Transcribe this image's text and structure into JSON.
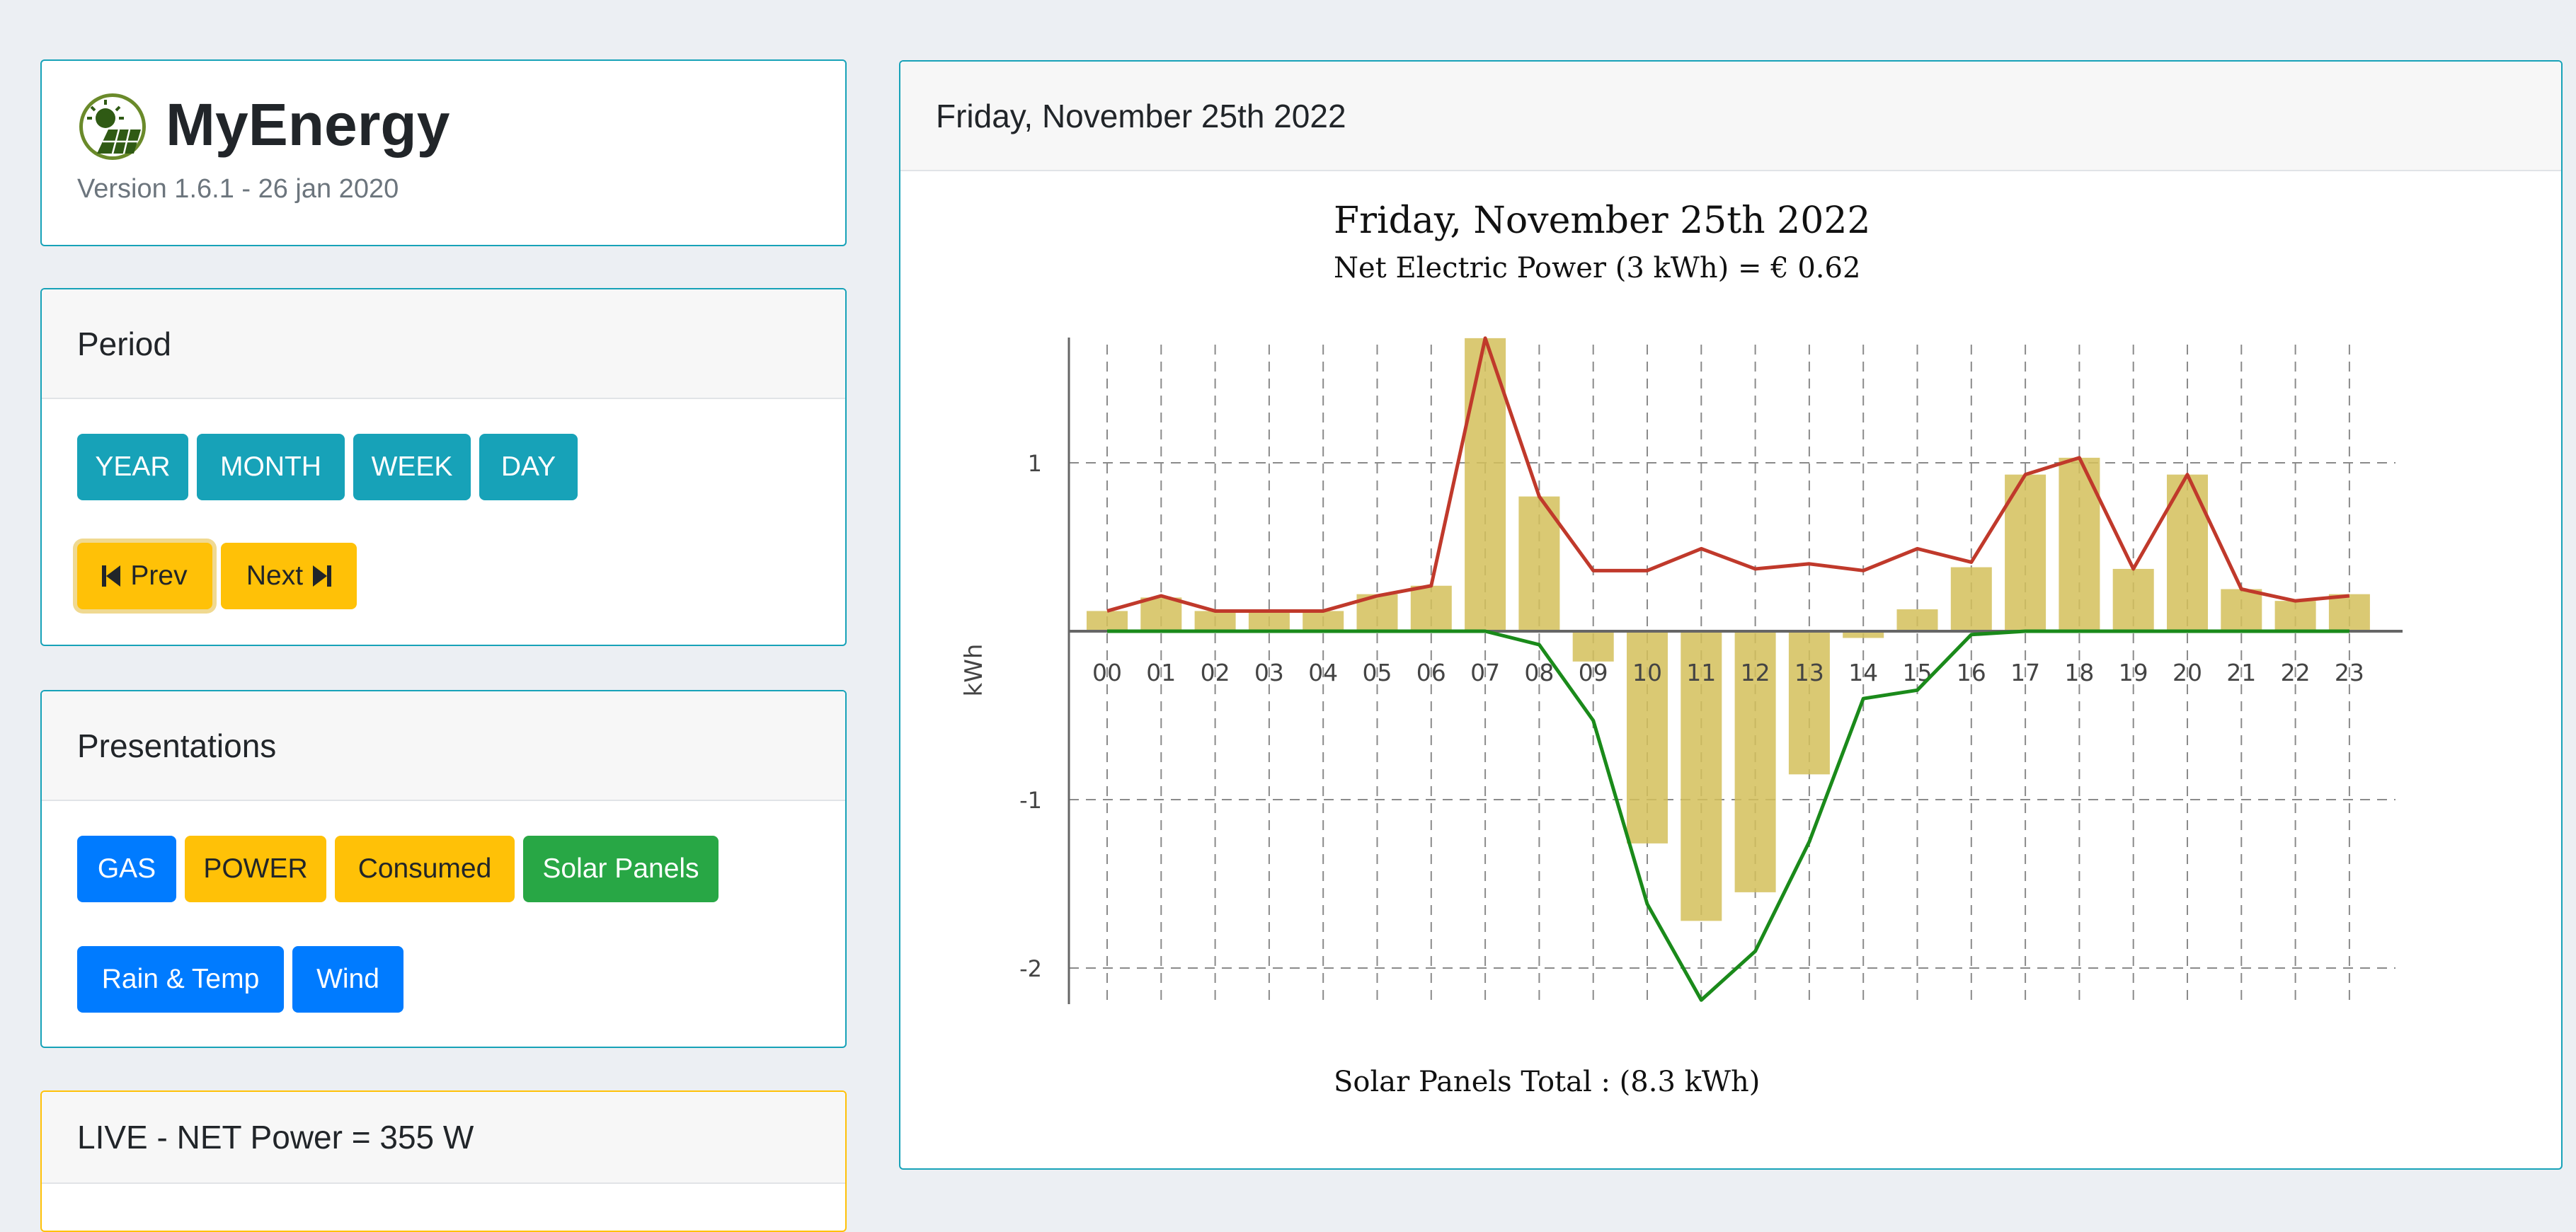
{
  "app": {
    "title": "MyEnergy",
    "version": "Version 1.6.1 - 26 jan 2020"
  },
  "period": {
    "header": "Period",
    "buttons": [
      "YEAR",
      "MONTH",
      "WEEK",
      "DAY"
    ],
    "prev_label": "Prev",
    "next_label": "Next"
  },
  "presentations": {
    "header": "Presentations",
    "buttons": [
      "GAS",
      "POWER",
      "Consumed",
      "Solar Panels",
      "Rain & Temp",
      "Wind"
    ]
  },
  "live": {
    "header": "LIVE - NET Power = 355 W"
  },
  "main": {
    "header": "Friday, November 25th 2022"
  },
  "colors": {
    "info": "#17a2b8",
    "warning": "#ffc107",
    "primary": "#007bff",
    "success": "#28a745",
    "bar": "#d4c05a",
    "net_line": "#c0392b",
    "solar_line": "#1a8a1a"
  },
  "icons": {
    "logo": "solar-sun-panel-icon",
    "prev": "skip-backward-icon",
    "next": "skip-forward-icon"
  },
  "chart_data": {
    "type": "bar",
    "title": "Friday, November 25th 2022",
    "subtitle": "Net Electric Power (3 kWh) = € 0.62",
    "footer": "Solar Panels Total : (8.3 kWh)",
    "ylabel": "kWh",
    "ylim": [
      -2.2,
      1.75
    ],
    "yticks": [
      1,
      -1,
      -2
    ],
    "categories": [
      "00",
      "01",
      "02",
      "03",
      "04",
      "05",
      "06",
      "07",
      "08",
      "09",
      "10",
      "11",
      "12",
      "13",
      "14",
      "15",
      "16",
      "17",
      "18",
      "19",
      "20",
      "21",
      "22",
      "23"
    ],
    "series": [
      {
        "type": "bar",
        "values": [
          0.12,
          0.2,
          0.12,
          0.12,
          0.12,
          0.22,
          0.27,
          1.74,
          0.8,
          -0.18,
          -1.26,
          -1.72,
          -1.55,
          -0.85,
          -0.04,
          0.13,
          0.38,
          0.93,
          1.03,
          0.37,
          0.93,
          0.25,
          0.18,
          0.22
        ]
      },
      {
        "type": "line",
        "values": [
          0.12,
          0.21,
          0.12,
          0.12,
          0.12,
          0.21,
          0.27,
          1.74,
          0.8,
          0.36,
          0.36,
          0.49,
          0.37,
          0.4,
          0.36,
          0.49,
          0.41,
          0.93,
          1.03,
          0.37,
          0.93,
          0.25,
          0.18,
          0.21
        ]
      },
      {
        "type": "line",
        "values": [
          0,
          0,
          0,
          0,
          0,
          0,
          0,
          0,
          -0.08,
          -0.53,
          -1.62,
          -2.19,
          -1.9,
          -1.25,
          -0.4,
          -0.35,
          -0.02,
          0,
          0,
          0,
          0,
          0,
          0,
          0
        ]
      }
    ],
    "grid": true
  }
}
